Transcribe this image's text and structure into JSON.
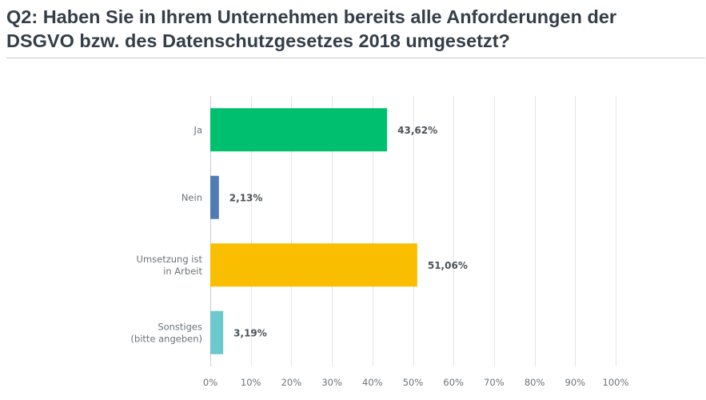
{
  "question": {
    "title": "Q2: Haben Sie in Ihrem Unternehmen bereits alle Anforderungen der\nDSGVO bzw. des Datenschutzgesetzes 2018 umgesetzt?"
  },
  "chart_data": {
    "type": "bar",
    "orientation": "horizontal",
    "categories": [
      [
        "Ja"
      ],
      [
        "Nein"
      ],
      [
        "Umsetzung ist",
        "in Arbeit"
      ],
      [
        "Sonstiges",
        "(bitte angeben)"
      ]
    ],
    "values": [
      43.62,
      2.13,
      51.06,
      3.19
    ],
    "value_labels": [
      "43,62%",
      "2,13%",
      "51,06%",
      "3,19%"
    ],
    "colors": [
      "#00bf6f",
      "#507cb6",
      "#f9be00",
      "#6bc8cd"
    ],
    "xlim": [
      0,
      100
    ],
    "xticks": [
      0,
      10,
      20,
      30,
      40,
      50,
      60,
      70,
      80,
      90,
      100
    ],
    "xtick_labels": [
      "0%",
      "10%",
      "20%",
      "30%",
      "40%",
      "50%",
      "60%",
      "70%",
      "80%",
      "90%",
      "100%"
    ],
    "grid": true,
    "legend": "none",
    "title": "",
    "xlabel": "",
    "ylabel": ""
  }
}
